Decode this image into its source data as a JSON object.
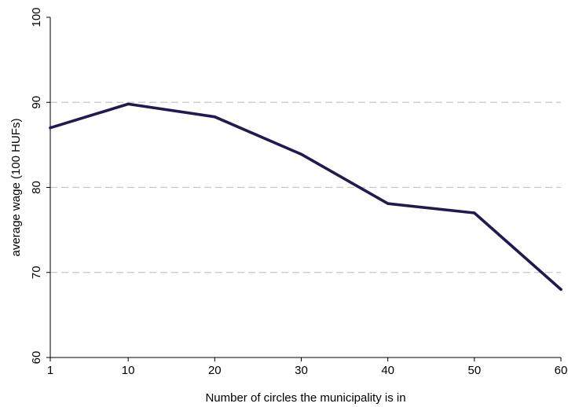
{
  "chart_data": {
    "type": "line",
    "title": "",
    "xlabel": "Number of circles the municipality is in",
    "ylabel": "average wage (100 HUFs)",
    "x": [
      1,
      10,
      20,
      30,
      40,
      50,
      60
    ],
    "series": [
      {
        "name": "",
        "values": [
          87.0,
          89.8,
          88.3,
          83.9,
          78.1,
          77.0,
          68.0
        ],
        "color": "#1f1a4f"
      }
    ],
    "xticks": [
      1,
      10,
      20,
      30,
      40,
      50,
      60
    ],
    "xtick_labels": [
      "1",
      "10",
      "20",
      "30",
      "40",
      "50",
      "60"
    ],
    "yticks": [
      60,
      70,
      80,
      90,
      100
    ],
    "ytick_labels": [
      "60",
      "70",
      "80",
      "90",
      "100"
    ],
    "xlim": [
      1,
      60
    ],
    "ylim": [
      60,
      100
    ],
    "grid": "dashed horizontal at 70, 80, 90",
    "legend": "none"
  }
}
